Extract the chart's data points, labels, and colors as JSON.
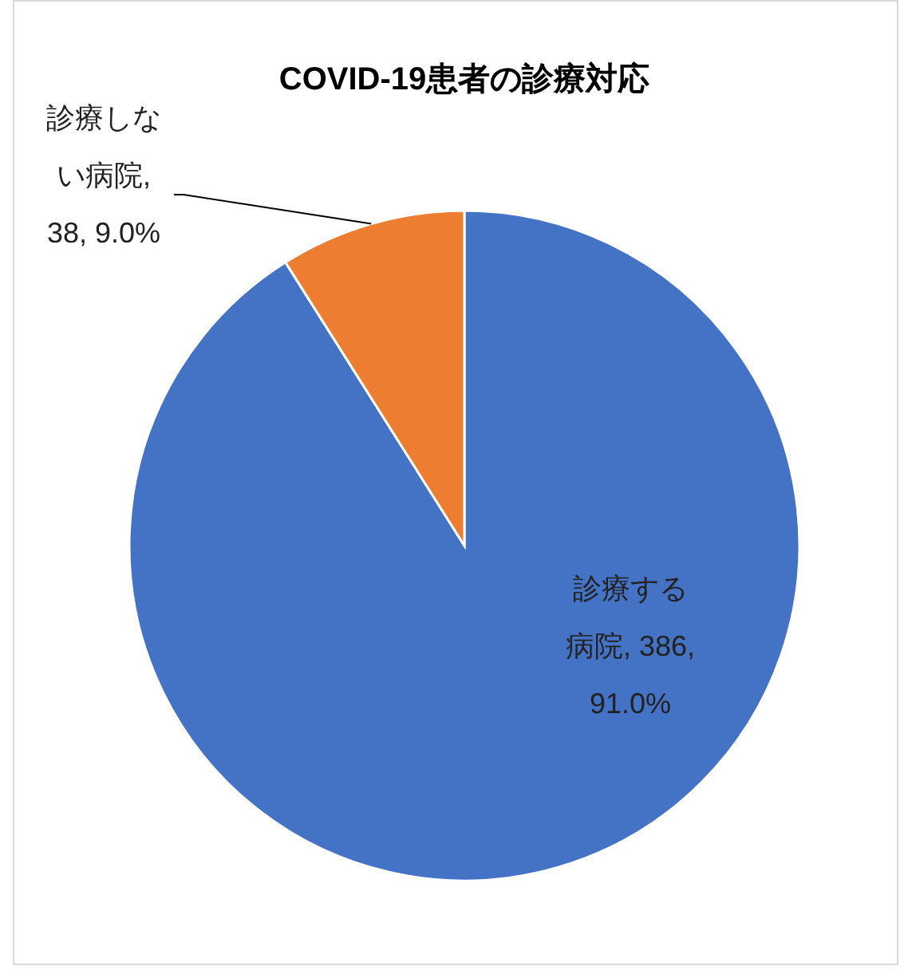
{
  "chart_data": {
    "type": "pie",
    "title": "COVID-19患者の診療対応",
    "categories": [
      "診療する病院",
      "診療しない病院"
    ],
    "values": [
      386,
      38
    ],
    "colors": [
      "#4472c4",
      "#ed7d31"
    ],
    "value_labels": [
      ", 386, 91.0%",
      ", 38, 9.0%"
    ],
    "legend": false
  }
}
